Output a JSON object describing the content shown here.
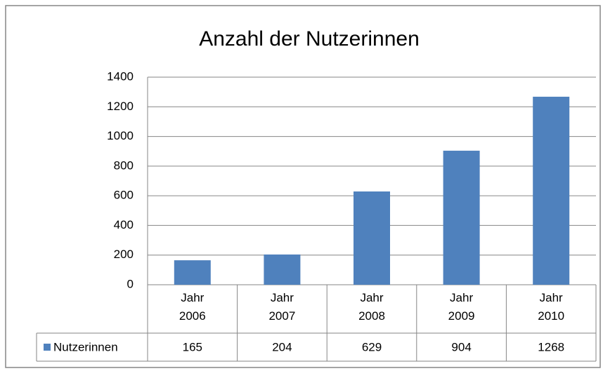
{
  "chart_data": {
    "type": "bar",
    "title": "Anzahl der Nutzerinnen",
    "categories": [
      "Jahr 2006",
      "Jahr 2007",
      "Jahr 2008",
      "Jahr 2009",
      "Jahr 2010"
    ],
    "series": [
      {
        "name": "Nutzerinnen",
        "color": "#4f81bd",
        "values": [
          165,
          204,
          629,
          904,
          1268
        ]
      }
    ],
    "ylim": [
      0,
      1400
    ],
    "yticks": [
      0,
      200,
      400,
      600,
      800,
      1000,
      1200,
      1400
    ],
    "grid": true,
    "data_table": true
  }
}
